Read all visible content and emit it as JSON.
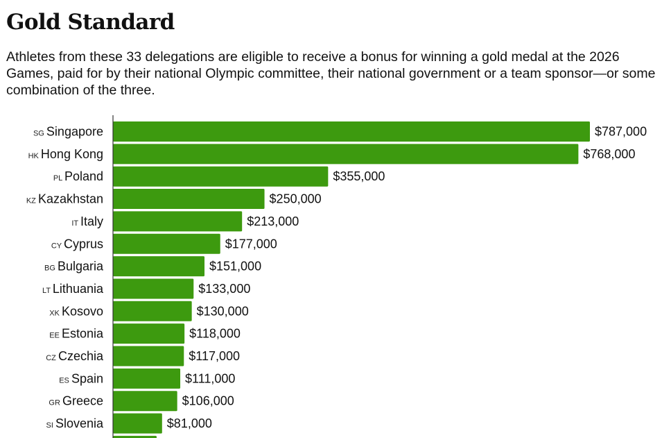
{
  "header": {
    "title": "Gold Standard",
    "subtitle": "Athletes from these 33 delegations are eligible to receive a bonus for winning a gold medal at the 2026 Games, paid for by their national Olympic committee, their national government or a team sponsor—or some combination of the three."
  },
  "colors": {
    "bar": "#3d9a0f",
    "axis": "#333333"
  },
  "chart_data": {
    "type": "bar",
    "orientation": "horizontal",
    "title": "Gold Standard",
    "categories": [
      {
        "code": "SG",
        "name": "Singapore"
      },
      {
        "code": "HK",
        "name": "Hong Kong"
      },
      {
        "code": "PL",
        "name": "Poland"
      },
      {
        "code": "KZ",
        "name": "Kazakhstan"
      },
      {
        "code": "IT",
        "name": "Italy"
      },
      {
        "code": "CY",
        "name": "Cyprus"
      },
      {
        "code": "BG",
        "name": "Bulgaria"
      },
      {
        "code": "LT",
        "name": "Lithuania"
      },
      {
        "code": "XK",
        "name": "Kosovo"
      },
      {
        "code": "EE",
        "name": "Estonia"
      },
      {
        "code": "CZ",
        "name": "Czechia"
      },
      {
        "code": "ES",
        "name": "Spain"
      },
      {
        "code": "GR",
        "name": "Greece"
      },
      {
        "code": "SI",
        "name": "Slovenia"
      }
    ],
    "values": [
      787000,
      768000,
      355000,
      250000,
      213000,
      177000,
      151000,
      133000,
      130000,
      118000,
      117000,
      111000,
      106000,
      81000
    ],
    "value_labels": [
      "$787,000",
      "$768,000",
      "$355,000",
      "$250,000",
      "$213,000",
      "$177,000",
      "$151,000",
      "$133,000",
      "$130,000",
      "$118,000",
      "$117,000",
      "$111,000",
      "$106,000",
      "$81,000"
    ],
    "partially_visible_next_value": 72000,
    "xlim": [
      0,
      787000
    ],
    "grid": false,
    "xlabel": "",
    "ylabel": ""
  }
}
